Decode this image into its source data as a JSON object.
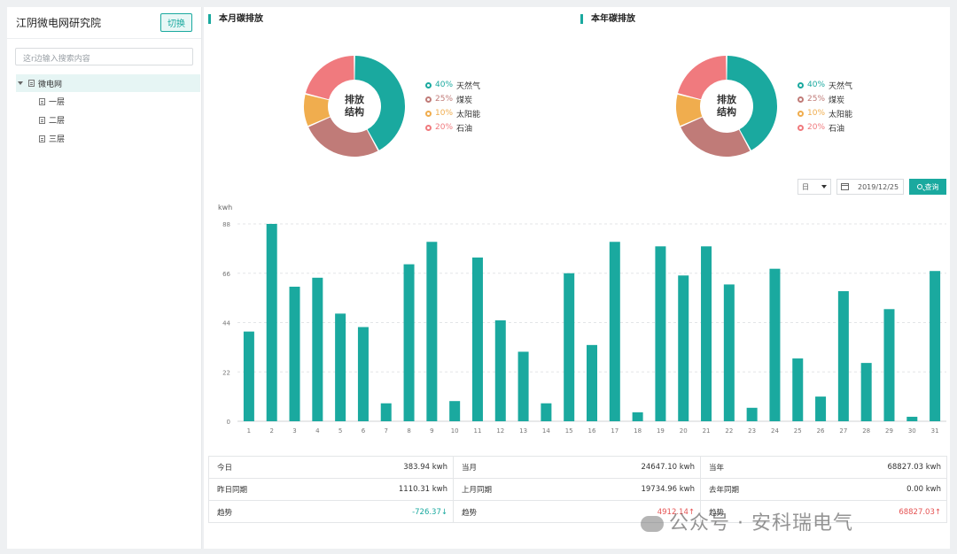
{
  "sidebar": {
    "title": "江阴微电网研究院",
    "switch_label": "切换",
    "search_placeholder": "这r边输入搜索内容",
    "tree": {
      "root": "微电网",
      "children": [
        "一层",
        "二层",
        "三层"
      ]
    }
  },
  "monthly": {
    "title": "本月碳排放",
    "center": "排放\n结构",
    "center_l1": "排放",
    "center_l2": "结构",
    "legend": [
      {
        "pct": "40%",
        "name": "天然气",
        "value": 40,
        "color": "#1aa99f"
      },
      {
        "pct": "25%",
        "name": "煤炭",
        "value": 25,
        "color": "#c07b78"
      },
      {
        "pct": "10%",
        "name": "太阳能",
        "value": 10,
        "color": "#f0ad4e"
      },
      {
        "pct": "20%",
        "name": "石油",
        "value": 20,
        "color": "#f07a7e"
      }
    ]
  },
  "yearly": {
    "title": "本年碳排放",
    "center_l1": "排放",
    "center_l2": "结构",
    "legend": [
      {
        "pct": "40%",
        "name": "天然气",
        "value": 40,
        "color": "#1aa99f"
      },
      {
        "pct": "25%",
        "name": "煤炭",
        "value": 25,
        "color": "#c07b78"
      },
      {
        "pct": "10%",
        "name": "太阳能",
        "value": 10,
        "color": "#f0ad4e"
      },
      {
        "pct": "20%",
        "name": "石油",
        "value": 20,
        "color": "#f07a7e"
      }
    ]
  },
  "controls": {
    "period": "日",
    "date": "2019/12/25",
    "query_label": "查询"
  },
  "chart_data": {
    "type": "bar",
    "ylabel": "kwh",
    "ylim": [
      0,
      88
    ],
    "yticks": [
      0,
      22,
      44,
      66,
      88
    ],
    "color": "#1aa99f",
    "categories": [
      "1",
      "2",
      "3",
      "4",
      "5",
      "6",
      "7",
      "8",
      "9",
      "10",
      "11",
      "12",
      "13",
      "14",
      "15",
      "16",
      "17",
      "18",
      "19",
      "20",
      "21",
      "22",
      "23",
      "24",
      "25",
      "26",
      "27",
      "28",
      "29",
      "30",
      "31"
    ],
    "values": [
      40,
      88,
      60,
      64,
      48,
      42,
      8,
      70,
      80,
      9,
      73,
      45,
      31,
      8,
      66,
      34,
      80,
      4,
      78,
      65,
      78,
      61,
      6,
      68,
      28,
      11,
      58,
      26,
      50,
      2,
      67
    ]
  },
  "stats": [
    {
      "label": "今日",
      "value": "383.94  kwh",
      "cls": ""
    },
    {
      "label": "当月",
      "value": "24647.10 kwh",
      "cls": ""
    },
    {
      "label": "当年",
      "value": "68827.03 kwh",
      "cls": ""
    },
    {
      "label": "昨日同期",
      "value": "1110.31  kwh",
      "cls": ""
    },
    {
      "label": "上月同期",
      "value": "19734.96  kwh",
      "cls": ""
    },
    {
      "label": "去年同期",
      "value": "0.00  kwh",
      "cls": ""
    },
    {
      "label": "趋势",
      "value": "-726.37↓",
      "cls": "down"
    },
    {
      "label": "趋势",
      "value": "4912.14↑",
      "cls": "up"
    },
    {
      "label": "趋势",
      "value": "68827.03↑",
      "cls": "up"
    }
  ],
  "watermark": "公众号 · 安科瑞电气"
}
